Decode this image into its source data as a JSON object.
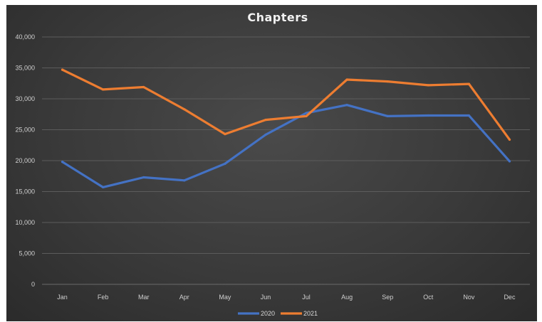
{
  "chart_data": {
    "type": "line",
    "title": "Chapters",
    "xlabel": "",
    "ylabel": "",
    "categories": [
      "Jan",
      "Feb",
      "Mar",
      "Apr",
      "May",
      "Jun",
      "Jul",
      "Aug",
      "Sep",
      "Oct",
      "Nov",
      "Dec"
    ],
    "ylim": [
      0,
      40000
    ],
    "yticks": [
      0,
      5000,
      10000,
      15000,
      20000,
      25000,
      30000,
      35000,
      40000
    ],
    "ytick_labels": [
      "0",
      "5,000",
      "10,000",
      "15,000",
      "20,000",
      "25,000",
      "30,000",
      "35,000",
      "40,000"
    ],
    "grid": true,
    "legend": "bottom",
    "series": [
      {
        "name": "2020",
        "color": "#4472c4",
        "values": [
          19800,
          15700,
          17300,
          16800,
          19500,
          24200,
          27700,
          29000,
          27200,
          27300,
          27300,
          19900
        ]
      },
      {
        "name": "2021",
        "color": "#ed7d31",
        "values": [
          34700,
          31500,
          31900,
          28300,
          24300,
          26600,
          27200,
          33100,
          32800,
          32200,
          32400,
          23400
        ]
      }
    ]
  }
}
